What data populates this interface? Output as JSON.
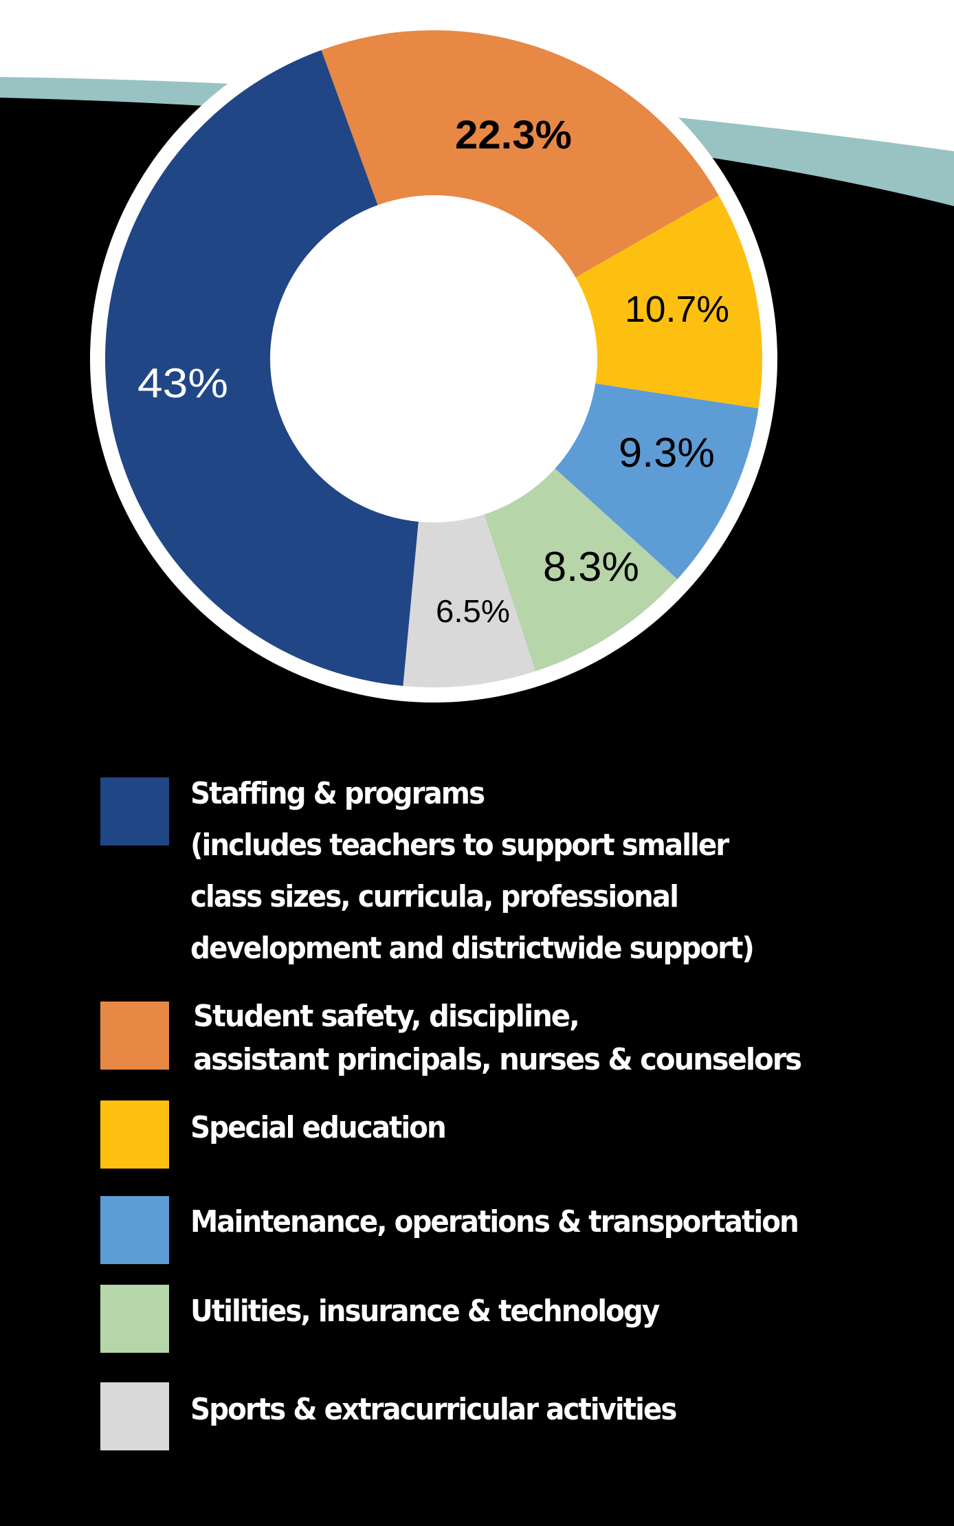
{
  "chart_data": {
    "type": "pie",
    "variant": "donut",
    "title": "",
    "start_angle_deg": -20,
    "direction": "clockwise",
    "slices": [
      {
        "label": "Student safety, discipline, assistant principals, nurses & counselors",
        "value": 22.3,
        "display": "22.3%",
        "color": "#E88845",
        "label_color": "#000000"
      },
      {
        "label": "Special education",
        "value": 10.7,
        "display": "10.7%",
        "color": "#FDC011",
        "label_color": "#000000"
      },
      {
        "label": "Maintenance, operations & transportation",
        "value": 9.3,
        "display": "9.3%",
        "color": "#5E9CD6",
        "label_color": "#000000"
      },
      {
        "label": "Utilities, insurance & technology",
        "value": 8.3,
        "display": "8.3%",
        "color": "#B6D5A8",
        "label_color": "#000000"
      },
      {
        "label": "Sports & extracurricular activities",
        "value": 6.5,
        "display": "6.5%",
        "color": "#D9D9D9",
        "label_color": "#000000"
      },
      {
        "label": "Staffing & programs (includes teachers to support smaller class sizes, curricula, professional development and districtwide support)",
        "value": 43,
        "display": "43%",
        "color": "#204686",
        "label_color": "#FFFFFF"
      }
    ],
    "legend_position": "bottom"
  },
  "chart": {
    "labels": {
      "orange": "22.3%",
      "yellow": "10.7%",
      "lightblue": "9.3%",
      "green": "8.3%",
      "gray": "6.5%",
      "blue": "43%"
    }
  },
  "legend": {
    "items": [
      {
        "color": "#204686",
        "lines": [
          "Staffing & programs",
          "(includes  teachers to support smaller",
          "class sizes, curricula, professional",
          "development and districtwide support)"
        ]
      },
      {
        "color": "#E88845",
        "lines": [
          "Student safety, discipline,",
          "assistant principals, nurses & counselors"
        ]
      },
      {
        "color": "#FDC011",
        "lines": [
          "Special education"
        ]
      },
      {
        "color": "#5E9CD6",
        "lines": [
          "Maintenance, operations & transportation"
        ]
      },
      {
        "color": "#B6D5A8",
        "lines": [
          "Utilities, insurance & technology"
        ]
      },
      {
        "color": "#D9D9D9",
        "lines": [
          "Sports & extracurricular activities"
        ]
      }
    ]
  },
  "colors": {
    "background": "#000000",
    "header_white": "#FFFFFF",
    "accent_band": "#99C2C3"
  }
}
